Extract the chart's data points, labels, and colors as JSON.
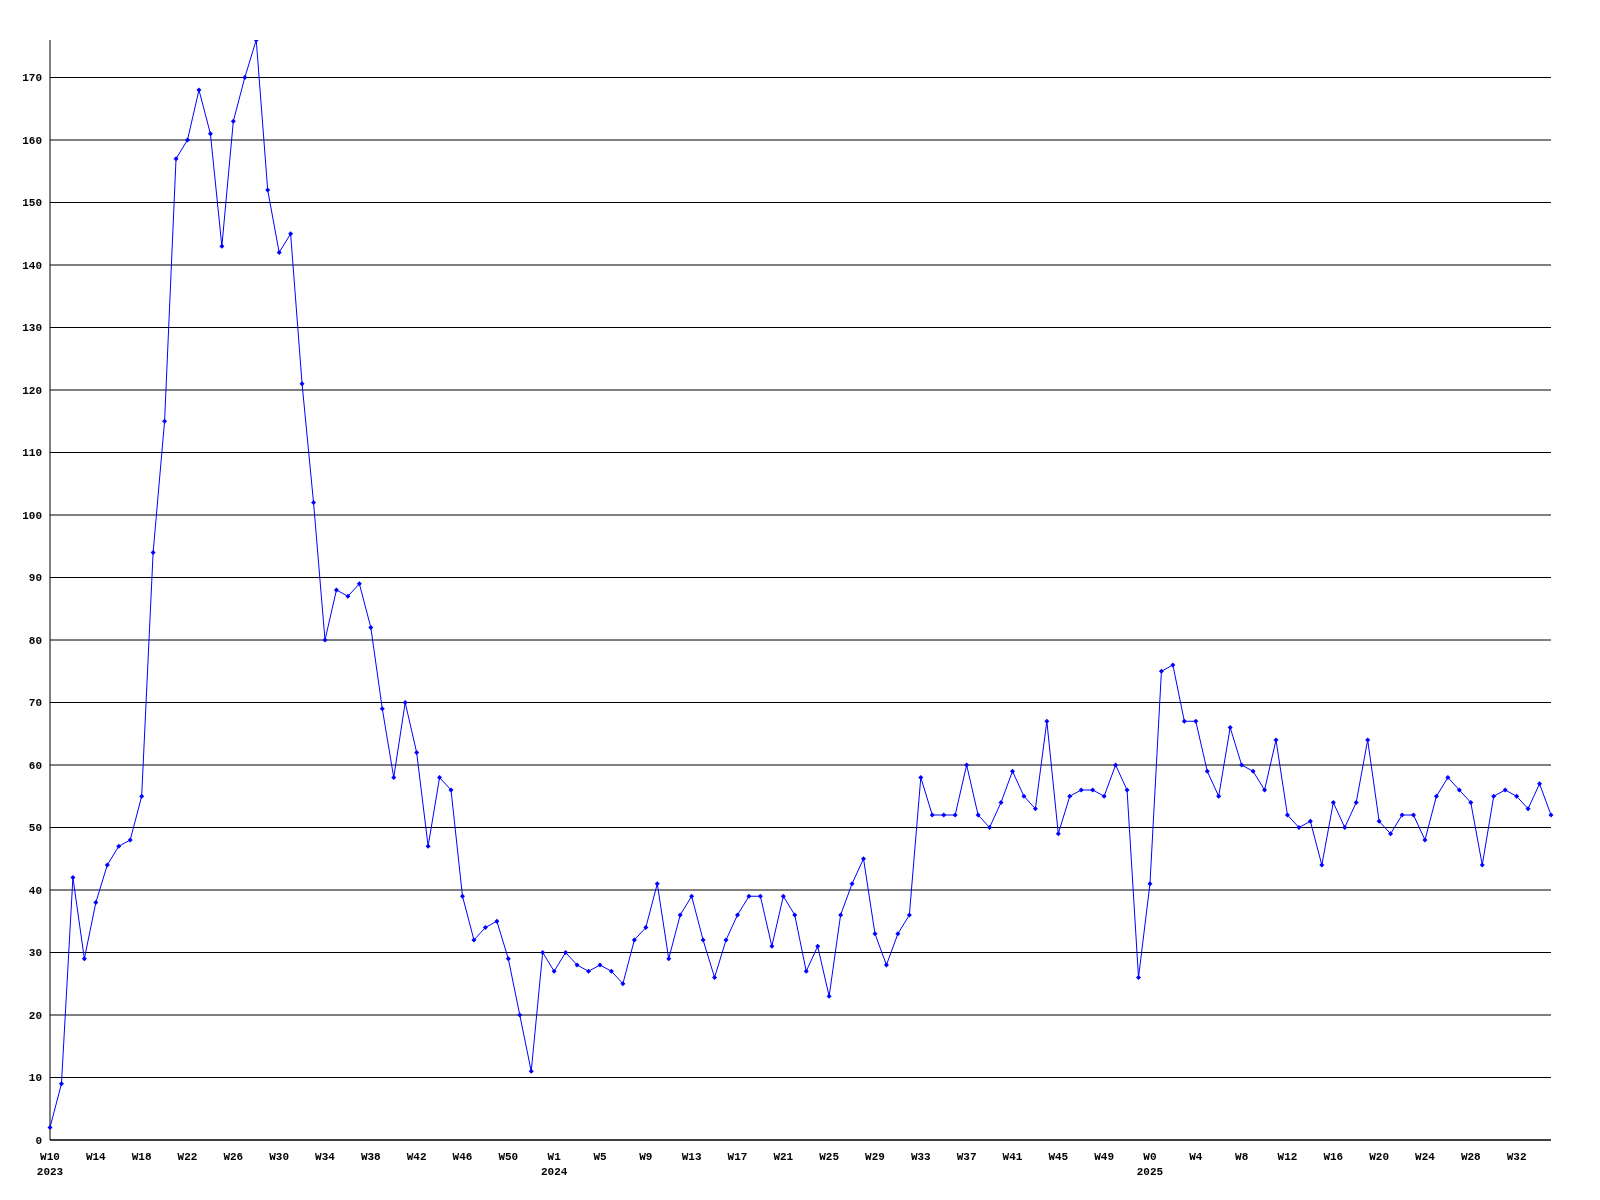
{
  "chart_data": {
    "type": "line",
    "categories": [
      "W10\n2023",
      null,
      null,
      null,
      "W14",
      null,
      null,
      null,
      "W18",
      null,
      null,
      null,
      "W22",
      null,
      null,
      null,
      "W26",
      null,
      null,
      null,
      "W30",
      null,
      null,
      null,
      "W34",
      null,
      null,
      null,
      "W38",
      null,
      null,
      null,
      "W42",
      null,
      null,
      null,
      "W46",
      null,
      null,
      null,
      "W50",
      null,
      null,
      null,
      "W1\n2024",
      null,
      null,
      null,
      "W5",
      null,
      null,
      null,
      "W9",
      null,
      null,
      null,
      "W13",
      null,
      null,
      null,
      "W17",
      null,
      null,
      null,
      "W21",
      null,
      null,
      null,
      "W25",
      null,
      null,
      null,
      "W29",
      null,
      null,
      null,
      "W33",
      null,
      null,
      null,
      "W37",
      null,
      null,
      null,
      "W41",
      null,
      null,
      null,
      "W45",
      null,
      null,
      null,
      "W49",
      null,
      null,
      null,
      "W0\n2025",
      null,
      null,
      null,
      "W4",
      null,
      null,
      null,
      "W8",
      null,
      null,
      null,
      "W12",
      null,
      null,
      null,
      "W16",
      null,
      null,
      null,
      "W20",
      null,
      null,
      null,
      "W24",
      null,
      null,
      null,
      "W28",
      null,
      null,
      null,
      "W32",
      null,
      null,
      null
    ],
    "series": [
      {
        "color": "#0000ff",
        "values": [
          2,
          9,
          42,
          29,
          38,
          44,
          47,
          48,
          55,
          94,
          115,
          157,
          160,
          168,
          161,
          143,
          163,
          170,
          176,
          152,
          142,
          145,
          121,
          102,
          80,
          88,
          87,
          89,
          82,
          69,
          58,
          70,
          62,
          47,
          58,
          56,
          39,
          32,
          34,
          35,
          29,
          20,
          11,
          30,
          27,
          30,
          28,
          27,
          28,
          27,
          25,
          32,
          34,
          41,
          29,
          36,
          39,
          32,
          26,
          32,
          36,
          39,
          39,
          31,
          39,
          36,
          27,
          31,
          23,
          36,
          41,
          45,
          33,
          28,
          33,
          36,
          58,
          52,
          52,
          52,
          60,
          52,
          50,
          54,
          59,
          55,
          53,
          67,
          49,
          55,
          56,
          56,
          55,
          60,
          56,
          26,
          41,
          75,
          76,
          67,
          67,
          59,
          55,
          66,
          60,
          59,
          56,
          64,
          52,
          50,
          51,
          44,
          54,
          50,
          54,
          64,
          51,
          49,
          52,
          52,
          48,
          55,
          58,
          56,
          54,
          44,
          55,
          56,
          55,
          53,
          57,
          52
        ]
      }
    ],
    "ylim": [
      0,
      176
    ],
    "yticks": [
      0,
      10,
      20,
      30,
      40,
      50,
      60,
      70,
      80,
      90,
      100,
      110,
      120,
      130,
      140,
      150,
      160,
      170
    ],
    "grid": "y",
    "legend": false,
    "marker": "diamond",
    "line_style": "solid"
  }
}
